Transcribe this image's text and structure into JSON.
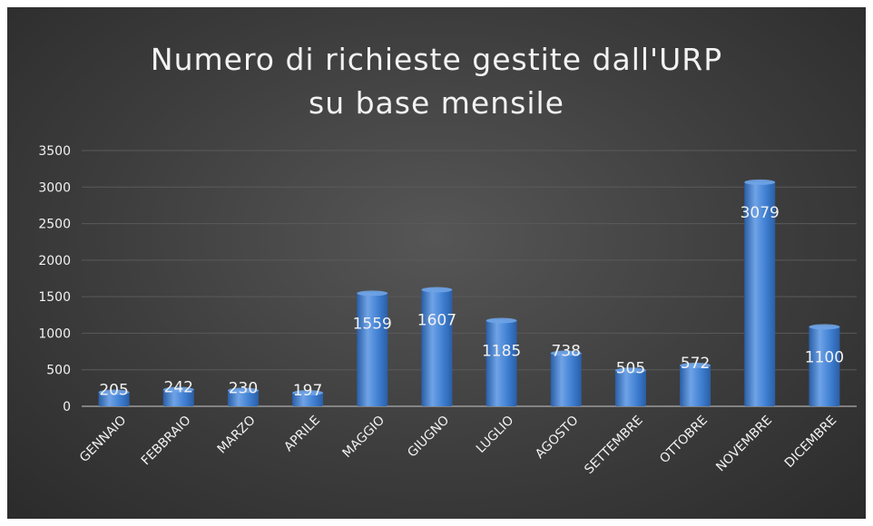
{
  "chart_data": {
    "type": "bar",
    "title_lines": [
      "Numero di richieste gestite dall'URP",
      "su base mensile"
    ],
    "categories": [
      "GENNAIO",
      "FEBBRAIO",
      "MARZO",
      "APRILE",
      "MAGGIO",
      "GIUGNO",
      "LUGLIO",
      "AGOSTO",
      "SETTEMBRE",
      "OTTOBRE",
      "NOVEMBRE",
      "DICEMBRE"
    ],
    "values": [
      205,
      242,
      230,
      197,
      1559,
      1607,
      1185,
      738,
      505,
      572,
      3079,
      1100
    ],
    "data_labels": [
      "205",
      "242",
      "230",
      "197",
      "1559",
      "1607",
      "1185",
      "738",
      "505",
      "572",
      "3079",
      "1100"
    ],
    "yticks": [
      "0",
      "500",
      "1000",
      "1500",
      "2000",
      "2500",
      "3000",
      "3500"
    ],
    "ylim": [
      0,
      3500
    ],
    "grid": true,
    "legend": "none",
    "colors": {
      "bar": "#3f7fd2",
      "bar_light": "#6fa3e6",
      "bar_dark": "#2a5ea6",
      "background": "#3f3f3f",
      "text": "#f2f2f2",
      "grid": "#5a5a5a"
    }
  }
}
